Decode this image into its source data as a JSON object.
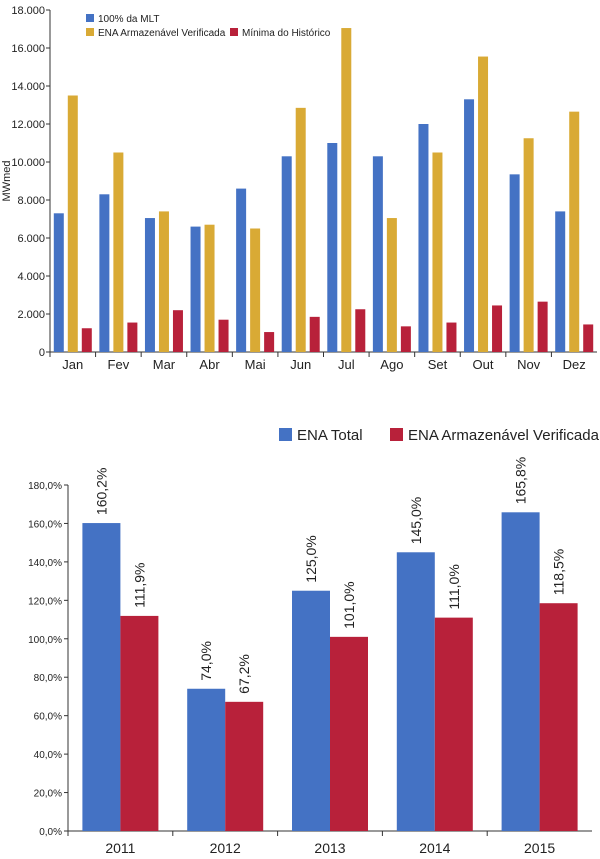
{
  "chart_data": [
    {
      "type": "bar",
      "ylabel": "MWmed",
      "ylim": [
        0,
        18000
      ],
      "yticks": [
        "0",
        "2.000",
        "4.000",
        "6.000",
        "8.000",
        "10.000",
        "12.000",
        "14.000",
        "16.000",
        "18.000"
      ],
      "ytick_values": [
        0,
        2000,
        4000,
        6000,
        8000,
        10000,
        12000,
        14000,
        16000,
        18000
      ],
      "grid": false,
      "legend_position": "top-left",
      "categories": [
        "Jan",
        "Fev",
        "Mar",
        "Abr",
        "Mai",
        "Jun",
        "Jul",
        "Ago",
        "Set",
        "Out",
        "Nov",
        "Dez"
      ],
      "series": [
        {
          "name": "100% da MLT",
          "color": "#4472c4",
          "values": [
            7300,
            8300,
            7050,
            6600,
            8600,
            10300,
            11000,
            10300,
            12000,
            13300,
            9350,
            7400
          ]
        },
        {
          "name": "ENA Armazenável Verificada",
          "color": "#d9aa35",
          "values": [
            13500,
            10500,
            7400,
            6700,
            6500,
            12850,
            17050,
            7050,
            10500,
            15550,
            11250,
            12650
          ]
        },
        {
          "name": "Mínima do Histórico",
          "color": "#b8213a",
          "values": [
            1250,
            1550,
            2200,
            1700,
            1050,
            1850,
            2250,
            1350,
            1550,
            2450,
            2650,
            1450
          ]
        }
      ]
    },
    {
      "type": "bar",
      "ylim": [
        0,
        180
      ],
      "yticks": [
        "0,0%",
        "20,0%",
        "40,0%",
        "60,0%",
        "80,0%",
        "100,0%",
        "120,0%",
        "140,0%",
        "160,0%",
        "180,0%"
      ],
      "ytick_values": [
        0,
        20,
        40,
        60,
        80,
        100,
        120,
        140,
        160,
        180
      ],
      "grid": false,
      "legend_position": "top-right",
      "categories": [
        "2011",
        "2012",
        "2013",
        "2014",
        "2015"
      ],
      "series": [
        {
          "name": "ENA Total",
          "color": "#4472c4",
          "values": [
            160.2,
            74.0,
            125.0,
            145.0,
            165.8
          ],
          "labels": [
            "160,2%",
            "74,0%",
            "125,0%",
            "145,0%",
            "165,8%"
          ]
        },
        {
          "name": "ENA Armazenável Verificada",
          "color": "#b8213a",
          "values": [
            111.9,
            67.2,
            101.0,
            111.0,
            118.5
          ],
          "labels": [
            "111,9%",
            "67,2%",
            "101,0%",
            "111,0%",
            "118,5%"
          ]
        }
      ]
    }
  ]
}
